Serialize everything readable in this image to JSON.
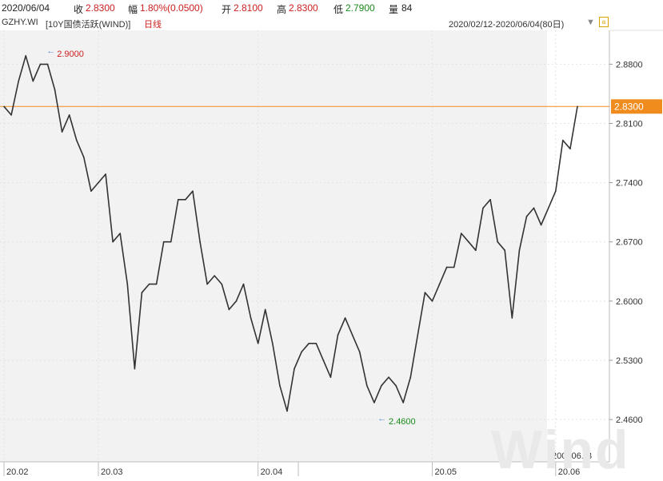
{
  "header": {
    "date": "2020/06/04",
    "close_label": "收",
    "close_value": "2.8300",
    "change_label": "幅",
    "change_value": "1.80%(0.0500)",
    "open_label": "开",
    "open_value": "2.8100",
    "high_label": "高",
    "high_value": "2.8300",
    "low_label": "低",
    "low_value": "2.7900",
    "volume_label": "量",
    "volume_value": "84"
  },
  "sub": {
    "code": "GZHY.WI",
    "name": "[10Y国债活跃(WIND)]",
    "period": "日线",
    "range": "2020/02/12-2020/06/04(80日)"
  },
  "footer": {
    "code": "200006.IB",
    "watermark": "Wind"
  },
  "colors": {
    "line": "#333333",
    "last_price_line": "#f08c1e",
    "high_marker": "#cc1f1f",
    "low_marker": "#1a8a1a",
    "shaded_region": "#f2f2f2"
  },
  "chart_data": {
    "type": "line",
    "title": "",
    "xlabel": "",
    "ylabel": "",
    "ylim": [
      2.41,
      2.92
    ],
    "yticks": [
      "2.8800",
      "2.8100",
      "2.7400",
      "2.6700",
      "2.6000",
      "2.5300",
      "2.4600"
    ],
    "xticks": [
      "20.02",
      "20.03",
      "20.04",
      "20.05",
      "20.06"
    ],
    "xtick_index": [
      0,
      13,
      35,
      59,
      76
    ],
    "last_price": "2.8300",
    "max_label": "2.9000",
    "max_index": 3,
    "min_label": "2.4600",
    "min_index": 53,
    "values": [
      2.83,
      2.82,
      2.86,
      2.89,
      2.86,
      2.88,
      2.88,
      2.85,
      2.8,
      2.82,
      2.79,
      2.77,
      2.73,
      2.74,
      2.75,
      2.67,
      2.68,
      2.62,
      2.52,
      2.61,
      2.62,
      2.62,
      2.67,
      2.67,
      2.72,
      2.72,
      2.73,
      2.67,
      2.62,
      2.63,
      2.62,
      2.59,
      2.6,
      2.62,
      2.58,
      2.55,
      2.59,
      2.55,
      2.5,
      2.47,
      2.52,
      2.54,
      2.55,
      2.55,
      2.53,
      2.51,
      2.56,
      2.58,
      2.56,
      2.54,
      2.5,
      2.48,
      2.5,
      2.51,
      2.5,
      2.48,
      2.51,
      2.56,
      2.61,
      2.6,
      2.62,
      2.64,
      2.64,
      2.68,
      2.67,
      2.66,
      2.71,
      2.72,
      2.67,
      2.66,
      2.58,
      2.66,
      2.7,
      2.71,
      2.69,
      2.71,
      2.73,
      2.79,
      2.78,
      2.83
    ]
  }
}
